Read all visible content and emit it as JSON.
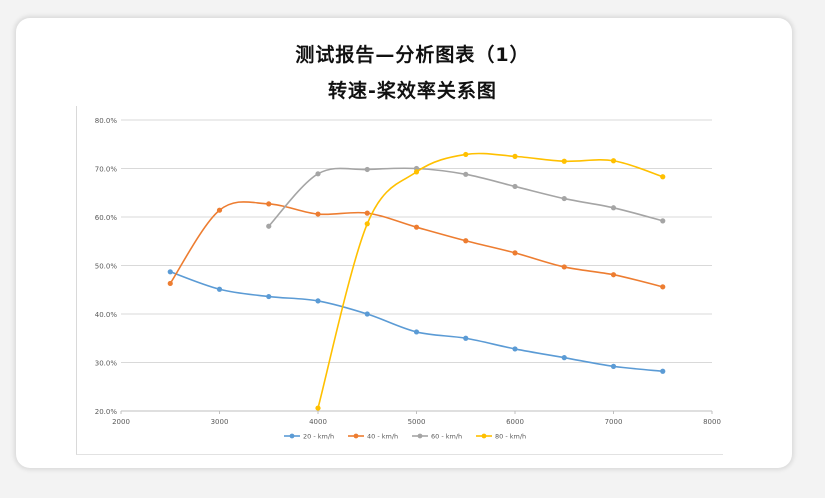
{
  "page": {
    "title_line1": "测试报告—分析图表（1）",
    "title_line2": "转速-桨效率关系图"
  },
  "chart_data": {
    "type": "line",
    "title": "",
    "xlabel": "",
    "ylabel": "",
    "xlim": [
      2000,
      8000
    ],
    "ylim": [
      20,
      80
    ],
    "x_ticks": [
      2000,
      3000,
      4000,
      5000,
      6000,
      7000,
      8000
    ],
    "y_ticks": [
      "20.0%",
      "30.0%",
      "40.0%",
      "50.0%",
      "60.0%",
      "70.0%",
      "80.0%"
    ],
    "y_tick_values": [
      20,
      30,
      40,
      50,
      60,
      70,
      80
    ],
    "grid": "horizontal",
    "legend_position": "bottom",
    "series": [
      {
        "name": "20 - km/h",
        "color": "#5b9bd5",
        "x": [
          2500,
          3000,
          3500,
          4000,
          4500,
          5000,
          5500,
          6000,
          6500,
          7000,
          7500
        ],
        "values": [
          48.7,
          45.1,
          43.6,
          42.7,
          40.0,
          36.3,
          35.0,
          32.8,
          31.0,
          29.2,
          28.2
        ]
      },
      {
        "name": "40 - km/h",
        "color": "#ed7d31",
        "x": [
          2500,
          3000,
          3500,
          4000,
          4500,
          5000,
          5500,
          6000,
          6500,
          7000,
          7500
        ],
        "values": [
          46.3,
          61.4,
          62.7,
          60.6,
          60.8,
          57.9,
          55.1,
          52.6,
          49.7,
          48.1,
          45.6
        ]
      },
      {
        "name": "60 - km/h",
        "color": "#a5a5a5",
        "x": [
          3500,
          4000,
          4500,
          5000,
          5500,
          6000,
          6500,
          7000,
          7500
        ],
        "values": [
          58.1,
          68.9,
          69.8,
          70.0,
          68.8,
          66.3,
          63.8,
          61.9,
          59.2
        ]
      },
      {
        "name": "80 - km/h",
        "color": "#ffc000",
        "x": [
          4000,
          4500,
          5000,
          5500,
          6000,
          6500,
          7000,
          7500
        ],
        "values": [
          20.6,
          58.6,
          69.3,
          72.9,
          72.5,
          71.5,
          71.6,
          68.3
        ]
      }
    ]
  }
}
